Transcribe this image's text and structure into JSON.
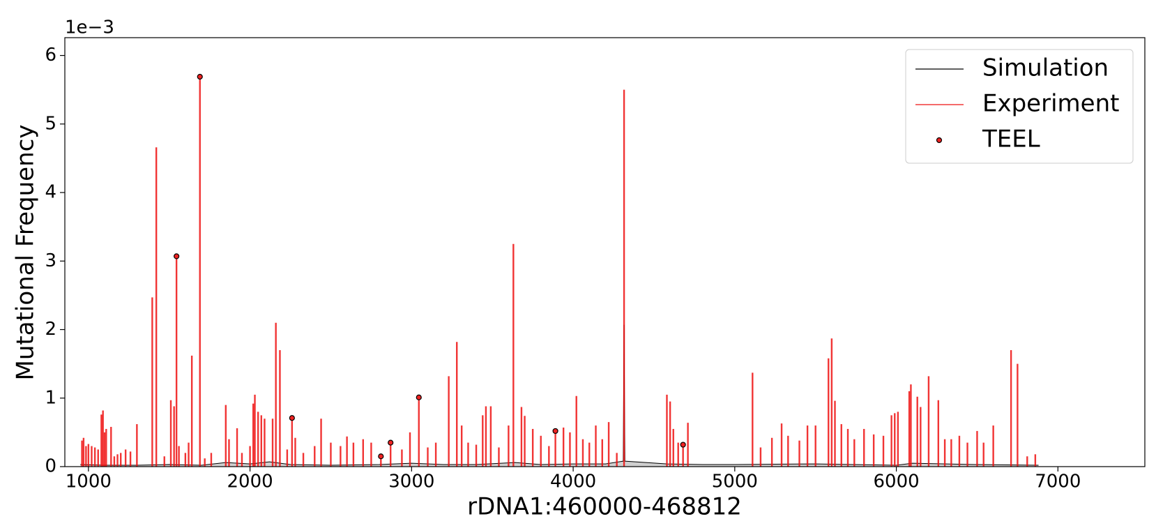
{
  "chart_data": {
    "type": "line",
    "x_label": "rDNA1:460000-468812",
    "y_label": "Mutational Frequency",
    "y_offset_label": "1e−3",
    "xlim": [
      854,
      7538
    ],
    "ylim": [
      0,
      6.26
    ],
    "xticks": [
      1000,
      2000,
      3000,
      4000,
      5000,
      6000,
      7000
    ],
    "yticks": [
      0,
      1,
      2,
      3,
      4,
      5,
      6
    ],
    "legend": "upper right",
    "series": [
      {
        "name": "Simulation",
        "type": "line",
        "color": "#000000",
        "fill": "#bbbbbb",
        "x": [
          950,
          1100,
          1300,
          1500,
          1700,
          1850,
          2000,
          2120,
          2250,
          2500,
          2800,
          3000,
          3200,
          3400,
          3640,
          3800,
          4000,
          4200,
          4310,
          4315,
          4320,
          4580,
          4800,
          5000,
          5500,
          6000,
          6100,
          6500,
          6880
        ],
        "values": [
          0.03,
          0.02,
          0.02,
          0.03,
          0.02,
          0.06,
          0.04,
          0.07,
          0.03,
          0.02,
          0.03,
          0.05,
          0.03,
          0.03,
          0.06,
          0.03,
          0.04,
          0.04,
          0.08,
          2.07,
          0.08,
          0.04,
          0.03,
          0.03,
          0.04,
          0.02,
          0.05,
          0.03,
          0.02
        ]
      },
      {
        "name": "Experiment",
        "type": "vlines",
        "color": "#ee1111",
        "x": [
          960,
          970,
          985,
          1000,
          1020,
          1040,
          1060,
          1080,
          1090,
          1100,
          1110,
          1140,
          1160,
          1180,
          1200,
          1230,
          1260,
          1300,
          1395,
          1420,
          1470,
          1510,
          1530,
          1545,
          1560,
          1600,
          1620,
          1640,
          1690,
          1720,
          1760,
          1850,
          1870,
          1920,
          1950,
          2000,
          2020,
          2030,
          2050,
          2070,
          2090,
          2140,
          2160,
          2185,
          2230,
          2260,
          2280,
          2330,
          2400,
          2440,
          2500,
          2560,
          2600,
          2640,
          2700,
          2750,
          2810,
          2870,
          2940,
          2990,
          3045,
          3100,
          3150,
          3230,
          3280,
          3310,
          3350,
          3400,
          3440,
          3460,
          3490,
          3540,
          3600,
          3630,
          3680,
          3700,
          3750,
          3800,
          3850,
          3890,
          3940,
          3980,
          4020,
          4060,
          4100,
          4140,
          4180,
          4220,
          4270,
          4315,
          4580,
          4600,
          4620,
          4650,
          4680,
          4710,
          5110,
          5160,
          5230,
          5290,
          5330,
          5400,
          5450,
          5500,
          5580,
          5600,
          5620,
          5660,
          5700,
          5740,
          5800,
          5860,
          5920,
          5970,
          5990,
          6010,
          6080,
          6090,
          6130,
          6150,
          6200,
          6260,
          6300,
          6340,
          6390,
          6440,
          6500,
          6540,
          6600,
          6710,
          6750,
          6810,
          6860
        ],
        "values": [
          0.38,
          0.42,
          0.3,
          0.33,
          0.3,
          0.28,
          0.25,
          0.76,
          0.82,
          0.5,
          0.55,
          0.58,
          0.15,
          0.18,
          0.2,
          0.25,
          0.22,
          0.62,
          2.47,
          4.66,
          0.15,
          0.97,
          0.88,
          3.07,
          0.3,
          0.2,
          0.35,
          1.62,
          5.69,
          0.12,
          0.2,
          0.9,
          0.4,
          0.56,
          0.2,
          0.3,
          0.92,
          1.05,
          0.8,
          0.75,
          0.7,
          0.7,
          2.1,
          1.7,
          0.25,
          0.71,
          0.42,
          0.2,
          0.3,
          0.7,
          0.35,
          0.3,
          0.44,
          0.35,
          0.4,
          0.35,
          0.15,
          0.35,
          0.25,
          0.5,
          1.01,
          0.28,
          0.35,
          1.32,
          1.82,
          0.6,
          0.35,
          0.32,
          0.75,
          0.88,
          0.88,
          0.28,
          0.6,
          3.25,
          0.87,
          0.74,
          0.55,
          0.45,
          0.3,
          0.52,
          0.57,
          0.5,
          1.03,
          0.4,
          0.35,
          0.6,
          0.4,
          0.65,
          0.2,
          5.5,
          1.05,
          0.95,
          0.55,
          0.35,
          0.32,
          0.64,
          1.37,
          0.28,
          0.42,
          0.63,
          0.45,
          0.38,
          0.6,
          0.6,
          1.58,
          1.87,
          0.96,
          0.62,
          0.55,
          0.4,
          0.55,
          0.47,
          0.45,
          0.75,
          0.78,
          0.8,
          1.1,
          1.2,
          1.02,
          0.87,
          1.32,
          0.97,
          0.4,
          0.4,
          0.45,
          0.35,
          0.52,
          0.35,
          0.6,
          1.7,
          1.5,
          0.15,
          0.18
        ]
      },
      {
        "name": "TEEL",
        "type": "scatter",
        "color": "#ee2222",
        "x": [
          1545,
          1690,
          2260,
          2810,
          2870,
          3045,
          3890,
          4680
        ],
        "values": [
          3.07,
          5.69,
          0.71,
          0.15,
          0.35,
          1.01,
          0.52,
          0.32
        ]
      }
    ]
  }
}
